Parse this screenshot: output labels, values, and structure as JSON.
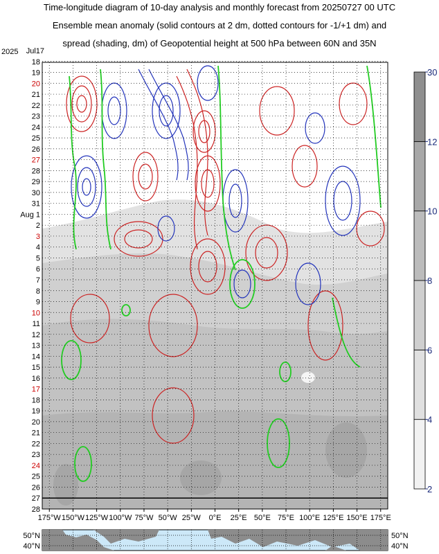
{
  "title_lines": [
    "Time-longitude diagram of 10-day analysis and monthly forecast from 20250727 00 UTC",
    "Ensemble mean anomaly (solid contours at 2 dm, dotted contours for -1/+1 dm) and",
    "spread (shading, dm) of Geopotential height at 500 hPa between 60N and 35N"
  ],
  "chart_data": {
    "type": "heatmap",
    "title": "Time-longitude diagram of 10-day analysis and monthly forecast from 20250727 00 UTC",
    "year_label": "2025",
    "first_date_label": "Jul17",
    "analysis_forecast_boundary_day": "27",
    "y_tick_labels": [
      {
        "label": "Jul17",
        "color": "#000000"
      },
      {
        "label": "18",
        "color": "#000000"
      },
      {
        "label": "19",
        "color": "#000000"
      },
      {
        "label": "20",
        "color": "#cc0000"
      },
      {
        "label": "21",
        "color": "#000000"
      },
      {
        "label": "22",
        "color": "#000000"
      },
      {
        "label": "23",
        "color": "#000000"
      },
      {
        "label": "24",
        "color": "#000000"
      },
      {
        "label": "25",
        "color": "#000000"
      },
      {
        "label": "26",
        "color": "#000000"
      },
      {
        "label": "27",
        "color": "#cc0000"
      },
      {
        "label": "28",
        "color": "#000000"
      },
      {
        "label": "29",
        "color": "#000000"
      },
      {
        "label": "30",
        "color": "#000000"
      },
      {
        "label": "31",
        "color": "#000000"
      },
      {
        "label": "Aug 1",
        "color": "#000000"
      },
      {
        "label": "2",
        "color": "#000000"
      },
      {
        "label": "3",
        "color": "#cc0000"
      },
      {
        "label": "4",
        "color": "#000000"
      },
      {
        "label": "5",
        "color": "#000000"
      },
      {
        "label": "6",
        "color": "#000000"
      },
      {
        "label": "7",
        "color": "#000000"
      },
      {
        "label": "8",
        "color": "#000000"
      },
      {
        "label": "9",
        "color": "#000000"
      },
      {
        "label": "10",
        "color": "#cc0000"
      },
      {
        "label": "11",
        "color": "#000000"
      },
      {
        "label": "12",
        "color": "#000000"
      },
      {
        "label": "13",
        "color": "#000000"
      },
      {
        "label": "14",
        "color": "#000000"
      },
      {
        "label": "15",
        "color": "#000000"
      },
      {
        "label": "16",
        "color": "#000000"
      },
      {
        "label": "17",
        "color": "#cc0000"
      },
      {
        "label": "18",
        "color": "#000000"
      },
      {
        "label": "19",
        "color": "#000000"
      },
      {
        "label": "20",
        "color": "#000000"
      },
      {
        "label": "21",
        "color": "#000000"
      },
      {
        "label": "22",
        "color": "#000000"
      },
      {
        "label": "23",
        "color": "#000000"
      },
      {
        "label": "24",
        "color": "#cc0000"
      },
      {
        "label": "25",
        "color": "#000000"
      },
      {
        "label": "26",
        "color": "#000000"
      },
      {
        "label": "27",
        "color": "#000000"
      },
      {
        "label": "28",
        "color": "#000000"
      }
    ],
    "x_tick_labels": [
      "175°W",
      "150°W",
      "125°W",
      "100°W",
      "75°W",
      "50°W",
      "25°W",
      "0°E",
      "25°E",
      "50°E",
      "75°E",
      "100°E",
      "125°E",
      "150°E",
      "175°E"
    ],
    "x_values": [
      -175,
      -150,
      -125,
      -100,
      -75,
      -50,
      -25,
      0,
      25,
      50,
      75,
      100,
      125,
      150,
      175
    ],
    "colorbar": {
      "label_values": [
        2,
        4,
        6,
        8,
        10,
        12,
        30
      ],
      "labels": [
        "2",
        "4",
        "6",
        "8",
        "10",
        "12",
        "30"
      ],
      "shades": [
        "#f2f2f2",
        "#e0e0e0",
        "#cfcfcf",
        "#bcbcbc",
        "#a8a8a8",
        "#8f8f8f"
      ]
    },
    "map_lat_labels": [
      "50°N",
      "40°N"
    ],
    "contour_colors": {
      "positive": "#cc2222",
      "negative": "#2233bb",
      "zero": "#22cc22"
    }
  }
}
